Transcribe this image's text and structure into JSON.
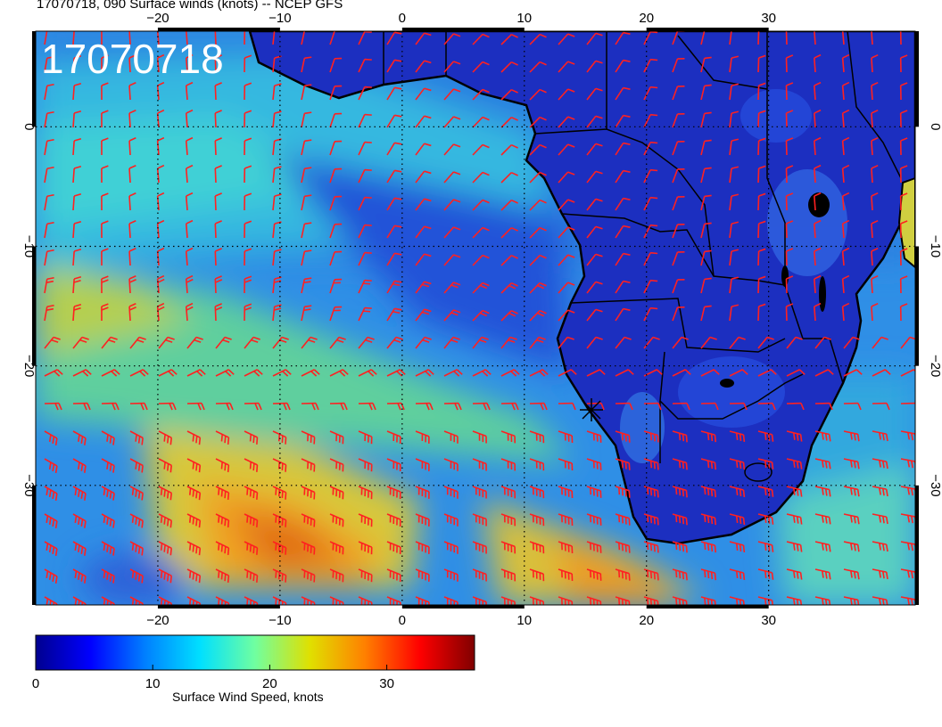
{
  "title": "17070718, 090 Surface winds (knots) -- NCEP GFS",
  "date_stamp": "17070718",
  "map": {
    "lon_range": [
      -30,
      42
    ],
    "lat_range": [
      -40,
      8
    ],
    "lon_ticks": [
      -20,
      -10,
      0,
      10,
      20,
      30
    ],
    "lat_ticks": [
      0,
      -10,
      -20,
      -30
    ],
    "lon_tick_labels": [
      "−20",
      "−10",
      "0",
      "10",
      "20",
      "30"
    ],
    "lat_tick_labels": [
      "0",
      "−10",
      "−20",
      "−30"
    ],
    "ocean_colors": [
      "#1a2ec8",
      "#2f8fe6",
      "#32c9d8",
      "#c7d23a",
      "#f0a020",
      "#e05a12"
    ],
    "land_color": "#1c2fc0",
    "wind_barb_color": "#ff2020",
    "coastline_color": "#000000"
  },
  "colorbar": {
    "title": "Surface Wind Speed, knots",
    "min": 0,
    "max": 37.5,
    "ticks": [
      0,
      10,
      20,
      30
    ],
    "tick_labels": [
      "0",
      "10",
      "20",
      "30"
    ],
    "colormap": [
      "#00008f",
      "#0000ff",
      "#0080ff",
      "#00e0ff",
      "#70ffa0",
      "#e0e000",
      "#ff8000",
      "#ff0000",
      "#800000"
    ]
  }
}
